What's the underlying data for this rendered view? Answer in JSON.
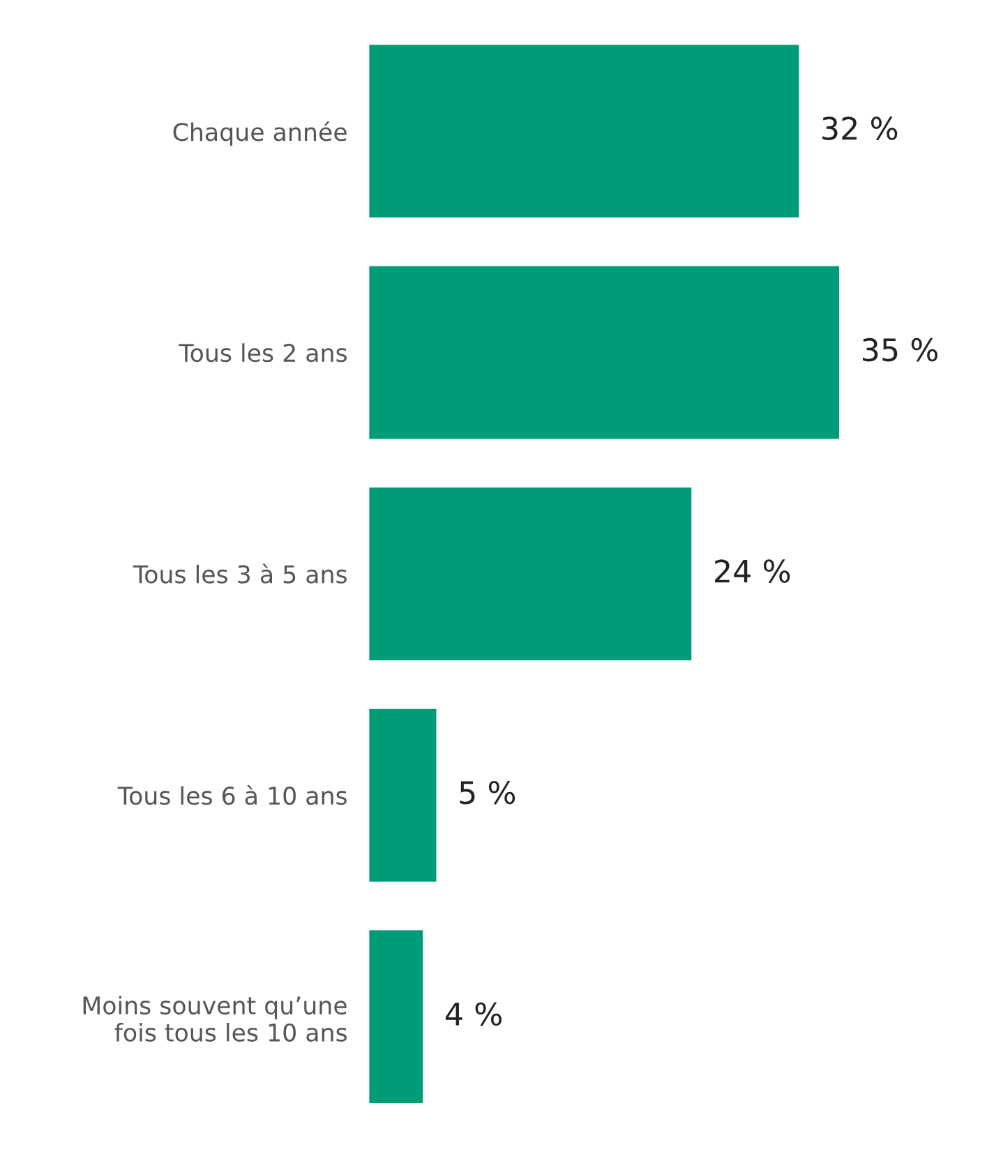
{
  "chart_data": {
    "type": "bar",
    "orientation": "horizontal",
    "categories": [
      "Chaque année",
      "Tous les 2 ans",
      "Tous les 3 à 5 ans",
      "Tous les 6 à 10 ans",
      "Moins souvent qu’une\nfois tous les 10 ans"
    ],
    "values": [
      32,
      35,
      24,
      5,
      4
    ],
    "value_labels": [
      "32 %",
      "35 %",
      "24 %",
      "5 %",
      "4 %"
    ],
    "color": "#009b77",
    "tick_labels": "y",
    "grid": false,
    "legend": false
  }
}
